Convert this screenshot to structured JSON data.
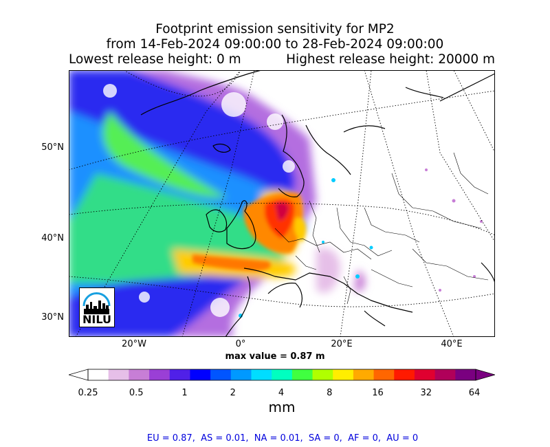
{
  "title": {
    "line1": "Footprint emission sensitivity for MP2",
    "line2": "from 14-Feb-2024 09:00:00 to 28-Feb-2024 09:00:00",
    "lowest": "Lowest release height: 0 m",
    "highest": "Highest release height: 20000 m"
  },
  "axes": {
    "lat_labels": [
      "50°N",
      "40°N",
      "30°N"
    ],
    "lon_labels": [
      "20°W",
      "0°",
      "20°E",
      "40°E"
    ]
  },
  "max_value": "max value = 0.87 m",
  "colorbar": {
    "ticks": [
      "0.25",
      "0.5",
      "1",
      "2",
      "4",
      "8",
      "16",
      "32",
      "64"
    ],
    "unit": "mm",
    "colors": [
      "#ffffff",
      "#e6bfe8",
      "#c77ed6",
      "#9a3fd6",
      "#5020e8",
      "#0000ff",
      "#0055ff",
      "#0099ff",
      "#00ddff",
      "#00ffc0",
      "#40ff40",
      "#b0ff00",
      "#ffee00",
      "#ffaa00",
      "#ff6600",
      "#ff1a00",
      "#e00030",
      "#b0005a",
      "#7a0080"
    ]
  },
  "logo": {
    "text": "NILU"
  },
  "regions": "EU = 0.87,  AS = 0.01,  NA = 0.01,  SA = 0,  AF = 0,  AU = 0"
}
